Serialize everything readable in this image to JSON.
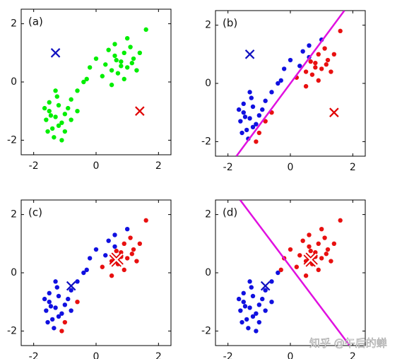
{
  "chart_data": [
    {
      "type": "scatter",
      "label": "(a)",
      "xlim": [
        -2.4,
        2.4
      ],
      "ylim": [
        -2.5,
        2.5
      ],
      "xticks": [
        -2,
        0,
        2
      ],
      "yticks": [
        -2,
        0,
        2
      ],
      "series": [
        {
          "color": "#00ee00",
          "x": [
            -1.3,
            -1.5,
            -1.1,
            -1.4,
            -1.2,
            -1.6,
            -1.0,
            -1.35,
            -1.5,
            -1.2,
            -0.9,
            -1.45,
            -1.25,
            -1.55,
            -1.1,
            -0.8,
            -1.3,
            -1.65,
            -0.6,
            -1.0,
            -0.6,
            -0.4,
            -0.8,
            0.8,
            0.6,
            1.0,
            0.9,
            0.5,
            1.2,
            0.7,
            0.4,
            1.1,
            0.3,
            1.3,
            0.9,
            0.6,
            0.2,
            1.4,
            0.0,
            -0.2,
            1.0,
            0.5,
            1.6,
            -0.3,
            0.8,
            1.15,
            0.65
          ],
          "y": [
            -1.2,
            -1.0,
            -1.4,
            -1.6,
            -0.8,
            -1.3,
            -1.1,
            -1.9,
            -0.7,
            -1.5,
            -0.9,
            -1.15,
            -0.5,
            -1.7,
            -2.0,
            -1.3,
            -0.3,
            -0.9,
            -1.0,
            -1.7,
            -0.3,
            0.0,
            -0.6,
            0.7,
            0.9,
            0.5,
            1.0,
            0.4,
            0.8,
            0.3,
            1.1,
            1.2,
            0.6,
            0.4,
            0.1,
            1.3,
            0.2,
            1.0,
            0.8,
            0.5,
            1.5,
            -0.1,
            1.8,
            0.1,
            0.55,
            0.65,
            0.75
          ]
        },
        {
          "color": "#1010c0",
          "marker": "x",
          "x": [
            -1.3
          ],
          "y": [
            1.0
          ]
        },
        {
          "color": "#e00000",
          "marker": "x",
          "x": [
            1.4
          ],
          "y": [
            -1.0
          ]
        }
      ]
    },
    {
      "type": "scatter",
      "label": "(b)",
      "xlim": [
        -2.4,
        2.4
      ],
      "ylim": [
        -2.5,
        2.5
      ],
      "xticks": [
        -2,
        0,
        2
      ],
      "yticks": [
        -2,
        0,
        2
      ],
      "series": [
        {
          "color": "#1010e0",
          "x": [
            -1.3,
            -1.5,
            -1.1,
            -1.4,
            -1.2,
            -1.6,
            -1.0,
            -1.35,
            -1.5,
            -1.2,
            -0.9,
            -1.45,
            -1.25,
            -1.55,
            -1.3,
            -1.65,
            -0.6,
            -0.4,
            -0.8,
            0.6,
            0.4,
            0.3,
            0.6,
            0.0,
            -0.2,
            1.0,
            -0.3
          ],
          "y": [
            -1.2,
            -1.0,
            -1.4,
            -1.6,
            -0.8,
            -1.3,
            -1.1,
            -1.9,
            -0.7,
            -1.5,
            -0.9,
            -1.15,
            -0.5,
            -1.7,
            -0.3,
            -0.9,
            -0.3,
            0.0,
            -0.6,
            0.9,
            1.1,
            0.6,
            1.3,
            0.8,
            0.5,
            1.5,
            0.1
          ]
        },
        {
          "color": "#e81010",
          "x": [
            -1.1,
            -1.0,
            -0.8,
            -0.6,
            0.8,
            1.0,
            0.9,
            0.5,
            1.2,
            0.7,
            1.1,
            1.3,
            0.9,
            0.2,
            1.4,
            0.5,
            1.6,
            0.8,
            1.15,
            0.65
          ],
          "y": [
            -2.0,
            -1.7,
            -1.3,
            -1.0,
            0.7,
            0.5,
            1.0,
            0.4,
            0.8,
            0.3,
            1.2,
            0.4,
            0.1,
            0.2,
            1.0,
            -0.1,
            1.8,
            0.55,
            0.65,
            0.75
          ]
        },
        {
          "color": "#e010e0",
          "type": "line",
          "x": [
            -1.73,
            1.73
          ],
          "y": [
            -2.5,
            2.5
          ]
        },
        {
          "color": "#1010c0",
          "marker": "x",
          "x": [
            -1.3
          ],
          "y": [
            1.0
          ]
        },
        {
          "color": "#e00000",
          "marker": "x",
          "x": [
            1.4
          ],
          "y": [
            -1.0
          ]
        }
      ]
    },
    {
      "type": "scatter",
      "label": "(c)",
      "xlim": [
        -2.4,
        2.4
      ],
      "ylim": [
        -2.5,
        2.5
      ],
      "xticks": [
        -2,
        0,
        2
      ],
      "yticks": [
        -2,
        0,
        2
      ],
      "series": [
        {
          "color": "#1010e0",
          "x": [
            -1.3,
            -1.5,
            -1.1,
            -1.4,
            -1.2,
            -1.6,
            -1.0,
            -1.35,
            -1.5,
            -1.2,
            -0.9,
            -1.45,
            -1.25,
            -1.55,
            -1.3,
            -1.65,
            -0.6,
            -0.4,
            -0.8,
            0.6,
            0.4,
            0.3,
            0.6,
            0.0,
            -0.2,
            1.0,
            -0.3,
            -0.8
          ],
          "y": [
            -1.2,
            -1.0,
            -1.4,
            -1.6,
            -0.8,
            -1.3,
            -1.1,
            -1.9,
            -0.7,
            -1.5,
            -0.9,
            -1.15,
            -0.5,
            -1.7,
            -0.3,
            -0.9,
            -0.3,
            0.0,
            -0.6,
            0.9,
            1.1,
            0.6,
            1.3,
            0.8,
            0.5,
            1.5,
            0.1,
            -1.3
          ]
        },
        {
          "color": "#e81010",
          "x": [
            -1.1,
            -1.0,
            -0.6,
            0.8,
            1.0,
            0.9,
            0.5,
            1.2,
            0.7,
            1.1,
            1.3,
            0.9,
            0.2,
            1.4,
            0.5,
            1.6,
            0.8,
            1.15,
            0.65
          ],
          "y": [
            -2.0,
            -1.7,
            -1.0,
            0.7,
            0.5,
            1.0,
            0.4,
            0.8,
            0.3,
            1.2,
            0.4,
            0.1,
            0.2,
            1.0,
            -0.1,
            1.8,
            0.55,
            0.65,
            0.75
          ]
        },
        {
          "color": "#1010c0",
          "marker": "x",
          "x": [
            -0.8
          ],
          "y": [
            -0.45
          ]
        },
        {
          "color": "#e00000",
          "inner_color": "#ffffff",
          "marker": "x",
          "x": [
            0.65
          ],
          "y": [
            0.45
          ]
        }
      ]
    },
    {
      "type": "scatter",
      "label": "(d)",
      "xlim": [
        -2.4,
        2.4
      ],
      "ylim": [
        -2.5,
        2.5
      ],
      "xticks": [
        -2,
        0,
        2
      ],
      "yticks": [
        -2,
        0,
        2
      ],
      "series": [
        {
          "color": "#1010e0",
          "x": [
            -1.3,
            -1.5,
            -1.1,
            -1.4,
            -1.2,
            -1.6,
            -1.0,
            -1.35,
            -1.5,
            -1.2,
            -0.9,
            -1.45,
            -1.25,
            -1.55,
            -1.1,
            -0.8,
            -1.3,
            -1.65,
            -0.6,
            -1.0,
            -0.6,
            -0.4,
            -0.8
          ],
          "y": [
            -1.2,
            -1.0,
            -1.4,
            -1.6,
            -0.8,
            -1.3,
            -1.1,
            -1.9,
            -0.7,
            -1.5,
            -0.9,
            -1.15,
            -0.5,
            -1.7,
            -2.0,
            -1.3,
            -0.3,
            -0.9,
            -1.0,
            -1.7,
            -0.3,
            0.0,
            -0.6
          ]
        },
        {
          "color": "#e81010",
          "x": [
            0.8,
            0.6,
            1.0,
            0.9,
            0.5,
            1.2,
            0.7,
            0.4,
            1.1,
            0.3,
            1.3,
            0.9,
            0.6,
            0.2,
            1.4,
            0.0,
            -0.2,
            1.0,
            0.5,
            1.6,
            -0.3,
            0.8,
            1.15,
            0.65
          ],
          "y": [
            0.7,
            0.9,
            0.5,
            1.0,
            0.4,
            0.8,
            0.3,
            1.1,
            1.2,
            0.6,
            0.4,
            0.1,
            1.3,
            0.2,
            1.0,
            0.8,
            0.5,
            1.5,
            -0.1,
            1.8,
            0.1,
            0.55,
            0.65,
            0.75
          ]
        },
        {
          "color": "#e010e0",
          "type": "line",
          "x": [
            -1.61,
            1.9
          ],
          "y": [
            2.5,
            -2.5
          ]
        },
        {
          "color": "#1010c0",
          "marker": "x",
          "x": [
            -0.8
          ],
          "y": [
            -0.45
          ]
        },
        {
          "color": "#e00000",
          "inner_color": "#ffffff",
          "marker": "x",
          "x": [
            0.65
          ],
          "y": [
            0.45
          ]
        }
      ]
    }
  ],
  "watermark": "知乎 @午后的蝉"
}
